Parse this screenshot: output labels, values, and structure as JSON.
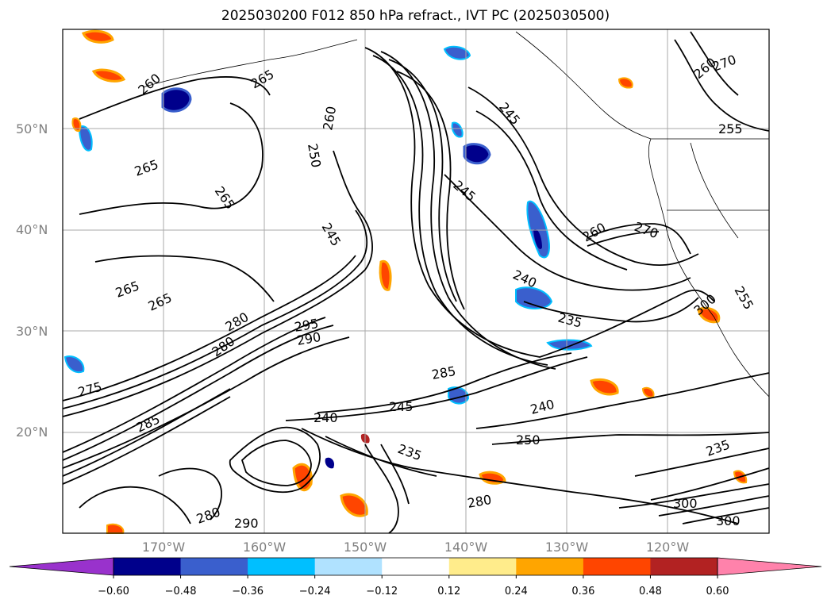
{
  "title": "2025030200 F012 850 hPa refract., IVT PC (2025030500)",
  "map": {
    "lat_labels": [
      {
        "text": "50°N",
        "lat": 50
      },
      {
        "text": "40°N",
        "lat": 40
      },
      {
        "text": "30°N",
        "lat": 30
      },
      {
        "text": "20°N",
        "lat": 20
      }
    ],
    "lon_labels": [
      {
        "text": "170°W",
        "lon": -170
      },
      {
        "text": "160°W",
        "lon": -160
      },
      {
        "text": "150°W",
        "lon": -150
      },
      {
        "text": "140°W",
        "lon": -140
      },
      {
        "text": "130°W",
        "lon": -130
      },
      {
        "text": "120°W",
        "lon": -120
      }
    ],
    "contour_labels": [
      "260",
      "265",
      "265",
      "265",
      "265",
      "265",
      "250",
      "260",
      "245",
      "245",
      "245",
      "245",
      "240",
      "235",
      "235",
      "235",
      "240",
      "240",
      "250",
      "270",
      "270",
      "280",
      "280",
      "280",
      "285",
      "285",
      "290",
      "295",
      "300",
      "300",
      "300",
      "255",
      "255",
      "260",
      "260",
      "275",
      "280",
      "290"
    ]
  },
  "colorbar": {
    "colors": [
      "#9932cc",
      "#00008b",
      "#3a5fcd",
      "#00bfff",
      "#b0e2ff",
      "#ffffff",
      "#ffec8b",
      "#ffa500",
      "#ff4500",
      "#b22222",
      "#ff82ab"
    ],
    "labels": [
      "−0.60",
      "−0.48",
      "−0.36",
      "−0.24",
      "−0.12",
      "0.12",
      "0.24",
      "0.36",
      "0.48",
      "0.60"
    ]
  }
}
